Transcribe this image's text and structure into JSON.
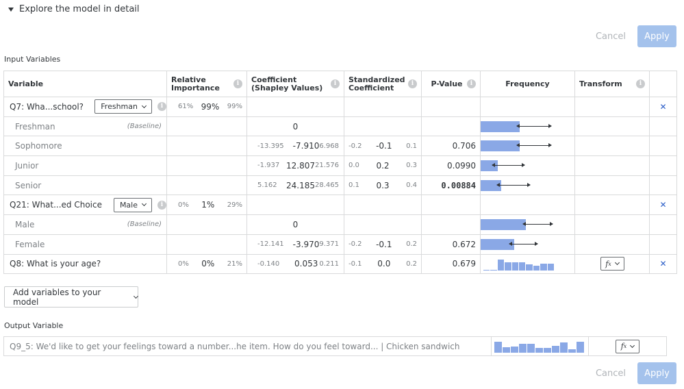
{
  "toggle_label": "Explore the model in detail",
  "top_actions": {
    "cancel": "Cancel",
    "apply": "Apply"
  },
  "bottom_actions": {
    "cancel": "Cancel",
    "apply": "Apply"
  },
  "input_section_label": "Input Variables",
  "output_section_label": "Output Variable",
  "headers": {
    "variable": "Variable",
    "relative_importance_1": "Relative",
    "relative_importance_2": "Importance",
    "coefficient_1": "Coefficient",
    "coefficient_2": "(Shapley Values)",
    "standardized_1": "Standardized",
    "standardized_2": "Coefficient",
    "pvalue": "P-Value",
    "frequency": "Frequency",
    "transform": "Transform"
  },
  "q7": {
    "name": "Q7: Wha...school?",
    "dropdown": "Freshman",
    "importance": {
      "lo": "61%",
      "mid": "99%",
      "hi": "99%"
    },
    "levels": [
      {
        "name": "Freshman",
        "baseline": "(Baseline)",
        "coef_mid": "0",
        "freq": 0.76,
        "ci_lo": 0.48,
        "ci_hi": 0.93
      },
      {
        "name": "Sophomore",
        "coef": {
          "lo": "-13.395",
          "mid": "-7.910",
          "hi": "6.968"
        },
        "std": {
          "lo": "-0.2",
          "mid": "-0.1",
          "hi": "0.1"
        },
        "pvalue": "0.706",
        "freq": 0.76,
        "ci_lo": 0.48,
        "ci_hi": 0.93
      },
      {
        "name": "Junior",
        "coef": {
          "lo": "-1.937",
          "mid": "12.807",
          "hi": "21.576"
        },
        "std": {
          "lo": "0.0",
          "mid": "0.2",
          "hi": "0.3"
        },
        "pvalue": "0.0990",
        "freq": 0.33,
        "ci_lo": 0.15,
        "ci_hi": 0.58
      },
      {
        "name": "Senior",
        "coef": {
          "lo": "5.162",
          "mid": "24.185",
          "hi": "28.465"
        },
        "std": {
          "lo": "0.1",
          "mid": "0.3",
          "hi": "0.4"
        },
        "pvalue": "0.00884",
        "freq": 0.4,
        "ci_lo": 0.22,
        "ci_hi": 0.65
      }
    ]
  },
  "q21": {
    "name": "Q21: What...ed Choice",
    "dropdown": "Male",
    "importance": {
      "lo": "0%",
      "mid": "1%",
      "hi": "29%"
    },
    "levels": [
      {
        "name": "Male",
        "baseline": "(Baseline)",
        "coef_mid": "0",
        "freq": 0.88,
        "ci_lo": 0.56,
        "ci_hi": 0.95
      },
      {
        "name": "Female",
        "coef": {
          "lo": "-12.141",
          "mid": "-3.970",
          "hi": "9.371"
        },
        "std": {
          "lo": "-0.2",
          "mid": "-0.1",
          "hi": "0.2"
        },
        "pvalue": "0.672",
        "freq": 0.65,
        "ci_lo": 0.38,
        "ci_hi": 0.75
      }
    ]
  },
  "q8": {
    "name": "Q8: What is your age?",
    "importance": {
      "lo": "0%",
      "mid": "0%",
      "hi": "21%"
    },
    "coef": {
      "lo": "-0.140",
      "mid": "0.053",
      "hi": "0.211"
    },
    "std": {
      "lo": "-0.1",
      "mid": "0.0",
      "hi": "0.2"
    },
    "pvalue": "0.679",
    "histogram": [
      0.1,
      0.05,
      1.0,
      0.75,
      0.75,
      0.75,
      0.6,
      0.45,
      0.65,
      0.65
    ],
    "transform_symbol": "f",
    "transform_sub": "x"
  },
  "add_variables_label": "Add variables to your model",
  "output": {
    "text": "Q9_5: We'd like to get your feelings toward a number...he item. How do you feel toward... | Chicken sandwich",
    "histogram": [
      1.0,
      0.5,
      0.55,
      0.8,
      0.8,
      0.45,
      0.45,
      0.6,
      0.95,
      0.3,
      1.0
    ],
    "transform_symbol": "f",
    "transform_sub": "x"
  },
  "colors": {
    "bar": "#8aa8e6",
    "apply_bg": "#a4c2ec",
    "remove_x": "#2d5fc8"
  },
  "icons": {
    "remove": "close-icon",
    "info": "info-icon",
    "toggle": "triangle-down-icon"
  }
}
